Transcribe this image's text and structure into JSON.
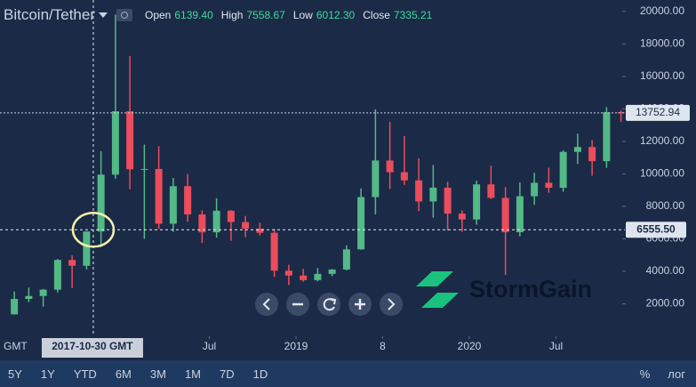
{
  "chart_data": {
    "type": "candlestick",
    "title": "Bitcoin/Tether",
    "ohlc_header": [
      {
        "label": "Open",
        "value": "6139.40"
      },
      {
        "label": "High",
        "value": "7558.67"
      },
      {
        "label": "Low",
        "value": "6012.30"
      },
      {
        "label": "Close",
        "value": "7335.21"
      }
    ],
    "x": [
      "2017-05",
      "2017-06",
      "2017-07",
      "2017-08",
      "2017-09",
      "2017-10",
      "2017-11",
      "2017-12",
      "2018-01",
      "2018-02",
      "2018-03",
      "2018-04",
      "2018-05",
      "2018-06",
      "2018-07",
      "2018-08",
      "2018-09",
      "2018-10",
      "2018-11",
      "2018-12",
      "2019-01",
      "2019-02",
      "2019-03",
      "2019-04",
      "2019-05",
      "2019-06",
      "2019-07",
      "2019-08",
      "2019-09",
      "2019-10",
      "2019-11",
      "2019-12",
      "2020-01",
      "2020-02",
      "2020-03",
      "2020-04",
      "2020-05",
      "2020-06",
      "2020-07",
      "2020-08",
      "2020-09",
      "2020-10",
      "2020-11"
    ],
    "open": [
      1350,
      2300,
      2480,
      2870,
      4700,
      4340,
      6450,
      9950,
      13850,
      10280,
      10300,
      6930,
      9240,
      7500,
      6400,
      7730,
      7030,
      6630,
      6370,
      4040,
      3740,
      3460,
      3840,
      4110,
      5350,
      8570,
      10820,
      10100,
      9600,
      8300,
      9150,
      7550,
      7190,
      9350,
      8520,
      6410,
      8620,
      9450,
      9140,
      11350,
      11650,
      10780,
      13790
    ],
    "high": [
      2760,
      3000,
      2920,
      4760,
      4980,
      6470,
      11400,
      19800,
      17250,
      11800,
      11700,
      9750,
      9990,
      7760,
      8500,
      7760,
      7410,
      7000,
      6600,
      4400,
      4150,
      4200,
      4140,
      5600,
      9100,
      13970,
      13200,
      12330,
      10950,
      10540,
      9510,
      7750,
      9580,
      10500,
      9190,
      9470,
      10070,
      10380,
      11450,
      12470,
      12070,
      14100,
      13900
    ],
    "low": [
      1350,
      2100,
      1830,
      2700,
      2970,
      4110,
      5500,
      9700,
      9050,
      6000,
      6600,
      6430,
      7050,
      5750,
      6070,
      5880,
      6100,
      6200,
      3650,
      3150,
      3350,
      3380,
      3700,
      4050,
      5330,
      7500,
      9060,
      9320,
      7710,
      7300,
      6510,
      6430,
      6870,
      8450,
      3780,
      6150,
      8100,
      8830,
      8900,
      10600,
      9880,
      10370,
      13200
    ],
    "close": [
      2300,
      2480,
      2870,
      4700,
      4340,
      6450,
      9950,
      13850,
      10280,
      10300,
      6930,
      9240,
      7500,
      6400,
      7730,
      7030,
      6630,
      6370,
      4040,
      3740,
      3460,
      3840,
      4110,
      5350,
      8570,
      10820,
      10100,
      9600,
      8300,
      9150,
      7550,
      7190,
      9350,
      8520,
      6410,
      8620,
      9450,
      9140,
      11350,
      11650,
      10780,
      13790,
      13752.94
    ],
    "up_color": "#53b987",
    "down_color": "#eb4d5c",
    "ylim": [
      0,
      20700
    ],
    "yticks": [
      {
        "value": 2000,
        "label": "2000.00"
      },
      {
        "value": 4000,
        "label": "4000.00"
      },
      {
        "value": 6000,
        "label": "6000.00"
      },
      {
        "value": 8000,
        "label": "8000.00"
      },
      {
        "value": 10000,
        "label": "10000.00"
      },
      {
        "value": 12000,
        "label": "12000.00"
      },
      {
        "value": 14000,
        "label": "14000.00"
      },
      {
        "value": 16000,
        "label": "16000.00"
      },
      {
        "value": 18000,
        "label": "18000.00"
      },
      {
        "value": 20000,
        "label": "20000.00"
      }
    ],
    "xticks": [
      {
        "value": "2018-07-01",
        "label": "Jul"
      },
      {
        "value": "2019-01-01",
        "label": "2019"
      },
      {
        "value": "2019-07-01",
        "label": "8"
      },
      {
        "value": "2020-01-01",
        "label": "2020"
      },
      {
        "value": "2020-07-01",
        "label": "Jul"
      }
    ],
    "timezone": "GMT",
    "last_price": {
      "value": 13752.94,
      "label": "13752.94"
    },
    "crosshair": {
      "x": "2017-10-30",
      "x_label": "2017-10-30 GMT",
      "y": 6555.5,
      "y_label": "6555.50"
    }
  },
  "brand": "StormGain",
  "toolbar": {
    "ranges": [
      "5Y",
      "1Y",
      "YTD",
      "6M",
      "3M",
      "1M",
      "7D",
      "1D"
    ],
    "right": [
      "%",
      "лог"
    ]
  }
}
